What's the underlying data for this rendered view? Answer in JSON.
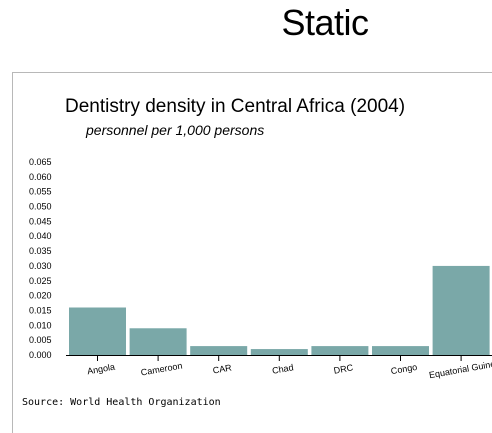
{
  "header": {
    "title": "Static"
  },
  "chart_data": {
    "type": "bar",
    "title": "Dentistry density in Central Africa (2004)",
    "subtitle": "personnel per 1,000 persons",
    "source": "Source: World Health Organization",
    "categories": [
      "Angola",
      "Cameroon",
      "CAR",
      "Chad",
      "DRC",
      "Congo",
      "Equatorial Guinea"
    ],
    "values": [
      0.016,
      0.009,
      0.003,
      0.002,
      0.003,
      0.003,
      0.03
    ],
    "ylim": [
      0,
      0.065
    ],
    "yticks": [
      "0.000",
      "0.005",
      "0.010",
      "0.015",
      "0.020",
      "0.025",
      "0.030",
      "0.035",
      "0.040",
      "0.045",
      "0.050",
      "0.055",
      "0.060",
      "0.065"
    ],
    "bar_color": "#7aa8a8",
    "grid": false
  }
}
